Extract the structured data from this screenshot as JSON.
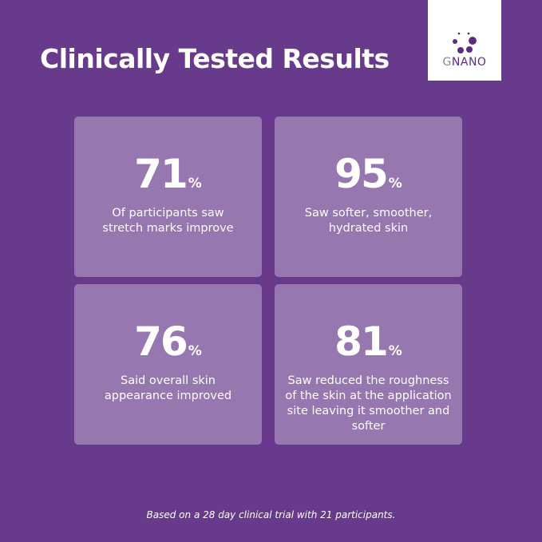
{
  "title": "Clinically Tested Results",
  "logo": {
    "prefix": "G",
    "rest": "NANO"
  },
  "colors": {
    "background": "#673a8c",
    "card": "#9677b0",
    "logo_purple": "#5b2d82"
  },
  "stats": [
    {
      "value": "71",
      "unit": "%",
      "description": "Of participants saw stretch marks improve"
    },
    {
      "value": "95",
      "unit": "%",
      "description": "Saw softer, smoother, hydrated skin"
    },
    {
      "value": "76",
      "unit": "%",
      "description": "Said overall skin appearance improved"
    },
    {
      "value": "81",
      "unit": "%",
      "description": "Saw reduced the roughness of the  skin at the application site leaving it smoother and softer"
    }
  ],
  "footnote": "Based on a 28 day clinical trial with 21 participants."
}
